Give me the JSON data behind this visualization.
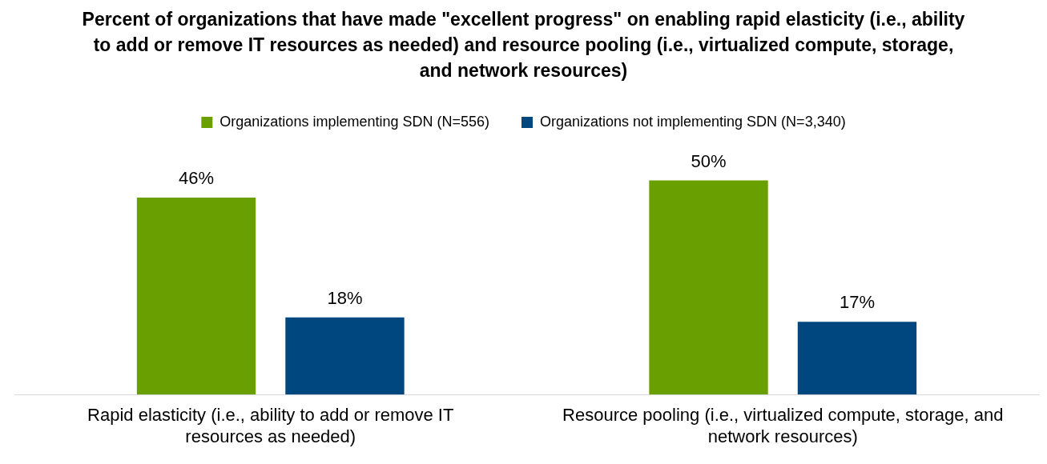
{
  "chart_data": {
    "type": "bar",
    "title": "Percent of organizations that have made \"excellent progress\" on enabling rapid elasticity (i.e., ability to add or remove IT resources as needed) and resource pooling (i.e., virtualized compute, storage, and network resources)",
    "categories": [
      "Rapid elasticity (i.e., ability to add or remove IT resources as needed)",
      "Resource pooling (i.e., virtualized compute, storage, and network resources)"
    ],
    "series": [
      {
        "name": "Organizations implementing SDN (N=556)",
        "color": "#6a9f00",
        "values": [
          46,
          50
        ],
        "value_labels": [
          "46%",
          "50%"
        ]
      },
      {
        "name": "Organizations not implementing SDN (N=3,340)",
        "color": "#00467f",
        "values": [
          18,
          17
        ],
        "value_labels": [
          "18%",
          "17%"
        ]
      }
    ],
    "tick_labels": "x",
    "grid": false,
    "legend": "top"
  }
}
